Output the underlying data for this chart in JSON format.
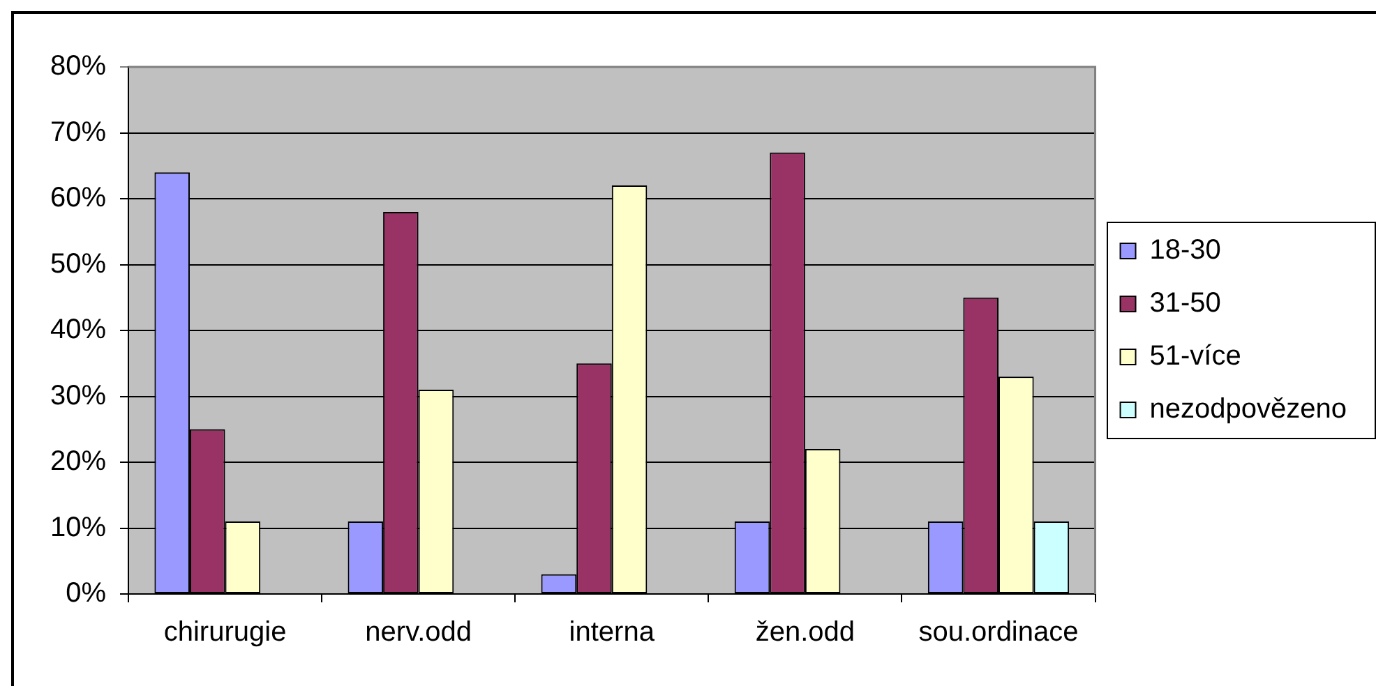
{
  "chart_data": {
    "type": "bar",
    "categories": [
      "chirurugie",
      "nerv.odd",
      "interna",
      "žen.odd",
      "sou.ordinace"
    ],
    "series": [
      {
        "name": "18-30",
        "color": "#9999ff",
        "values": [
          64,
          11,
          3,
          11,
          11
        ]
      },
      {
        "name": "31-50",
        "color": "#993366",
        "values": [
          25,
          58,
          35,
          67,
          45
        ]
      },
      {
        "name": "51-více",
        "color": "#ffffcc",
        "values": [
          11,
          31,
          62,
          22,
          33
        ]
      },
      {
        "name": "nezodpovězeno",
        "color": "#ccffff",
        "values": [
          null,
          null,
          null,
          null,
          11
        ]
      }
    ],
    "ylim": [
      0,
      80
    ],
    "yticks": [
      {
        "value": 0,
        "label": "0%"
      },
      {
        "value": 10,
        "label": "10%"
      },
      {
        "value": 20,
        "label": "20%"
      },
      {
        "value": 30,
        "label": "30%"
      },
      {
        "value": 40,
        "label": "40%"
      },
      {
        "value": 50,
        "label": "50%"
      },
      {
        "value": 60,
        "label": "60%"
      },
      {
        "value": 70,
        "label": "70%"
      },
      {
        "value": 80,
        "label": "80%"
      }
    ],
    "grid": "y",
    "legend": "right"
  }
}
